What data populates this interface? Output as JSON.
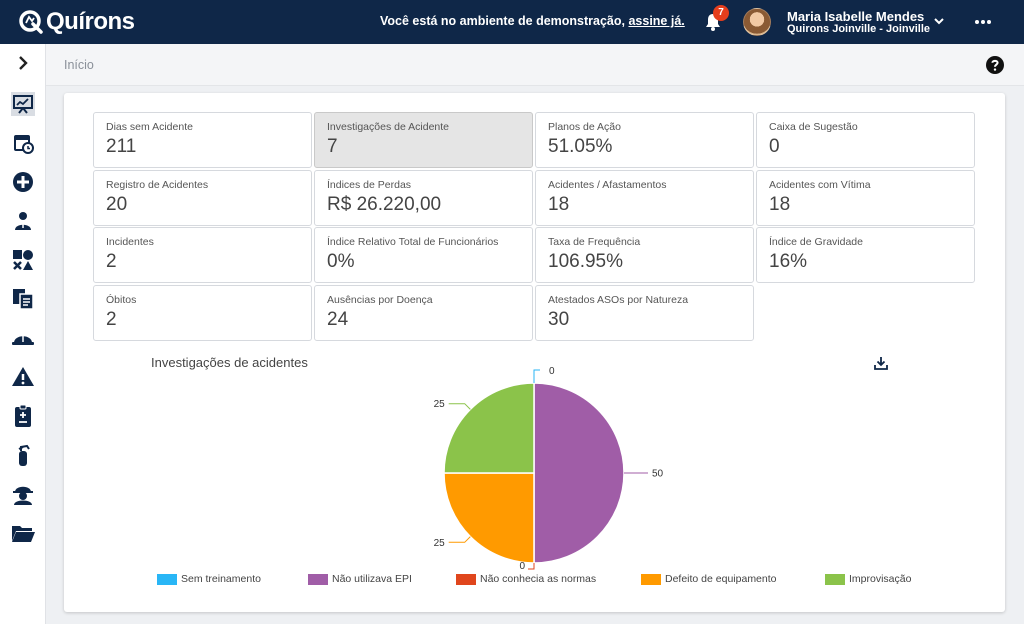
{
  "header": {
    "logo_text": "Quírons",
    "demo_message": "Você está no ambiente de demonstração,",
    "demo_link": "assine já.",
    "notifications_count": "7",
    "user_name": "Maria Isabelle Mendes",
    "user_org": "Quirons Joinville - Joinville",
    "icons": {
      "bell": "bell-icon",
      "chevron": "chevron-down-icon",
      "more": "more-horizontal-icon"
    }
  },
  "breadcrumb": {
    "current": "Início"
  },
  "sidebar": {
    "items": [
      {
        "name": "dashboard",
        "icon": "presentation-chart-icon",
        "active": true
      },
      {
        "name": "calendar",
        "icon": "calendar-clock-icon"
      },
      {
        "name": "add",
        "icon": "plus-circle-icon"
      },
      {
        "name": "users",
        "icon": "users-icon"
      },
      {
        "name": "shapes",
        "icon": "shapes-icon"
      },
      {
        "name": "documents",
        "icon": "documents-icon"
      },
      {
        "name": "helmet",
        "icon": "helmet-icon"
      },
      {
        "name": "alert",
        "icon": "warning-icon"
      },
      {
        "name": "clipboard",
        "icon": "clipboard-icon"
      },
      {
        "name": "extinguisher",
        "icon": "fire-extinguisher-icon"
      },
      {
        "name": "worker",
        "icon": "worker-icon"
      },
      {
        "name": "folder",
        "icon": "folder-open-icon"
      }
    ]
  },
  "kpis": [
    {
      "label": "Dias sem Acidente",
      "value": "211"
    },
    {
      "label": "Investigações de Acidente",
      "value": "7",
      "active": true
    },
    {
      "label": "Planos de Ação",
      "value": "51.05%"
    },
    {
      "label": "Caixa de Sugestão",
      "value": "0"
    },
    {
      "label": "Registro de Acidentes",
      "value": "20"
    },
    {
      "label": "Índices de Perdas",
      "value": "R$ 26.220,00"
    },
    {
      "label": "Acidentes / Afastamentos",
      "value": "18"
    },
    {
      "label": "Acidentes com Vítima",
      "value": "18"
    },
    {
      "label": "Incidentes",
      "value": "2"
    },
    {
      "label": "Índice Relativo Total de Funcionários",
      "value": "0%"
    },
    {
      "label": "Taxa de Frequência",
      "value": "106.95%"
    },
    {
      "label": "Índice de Gravidade",
      "value": "16%"
    },
    {
      "label": "Óbitos",
      "value": "2"
    },
    {
      "label": "Ausências por Doença",
      "value": "24"
    },
    {
      "label": "Atestados ASOs por Natureza",
      "value": "30"
    }
  ],
  "chart_data": {
    "type": "pie",
    "title": "Investigações de acidentes",
    "slices": [
      {
        "name": "Sem treinamento",
        "value": 0,
        "color": "#29b6f6"
      },
      {
        "name": "Não utilizava EPI",
        "value": 50,
        "color": "#a05da7"
      },
      {
        "name": "Não conhecia as normas",
        "value": 0,
        "color": "#e0461d"
      },
      {
        "name": "Defeito de equipamento",
        "value": 25,
        "color": "#ff9a00"
      },
      {
        "name": "Improvisação",
        "value": 25,
        "color": "#8bc34a"
      }
    ],
    "data_labels": [
      "0",
      "50",
      "0",
      "25",
      "25"
    ],
    "legend_position": "bottom"
  }
}
